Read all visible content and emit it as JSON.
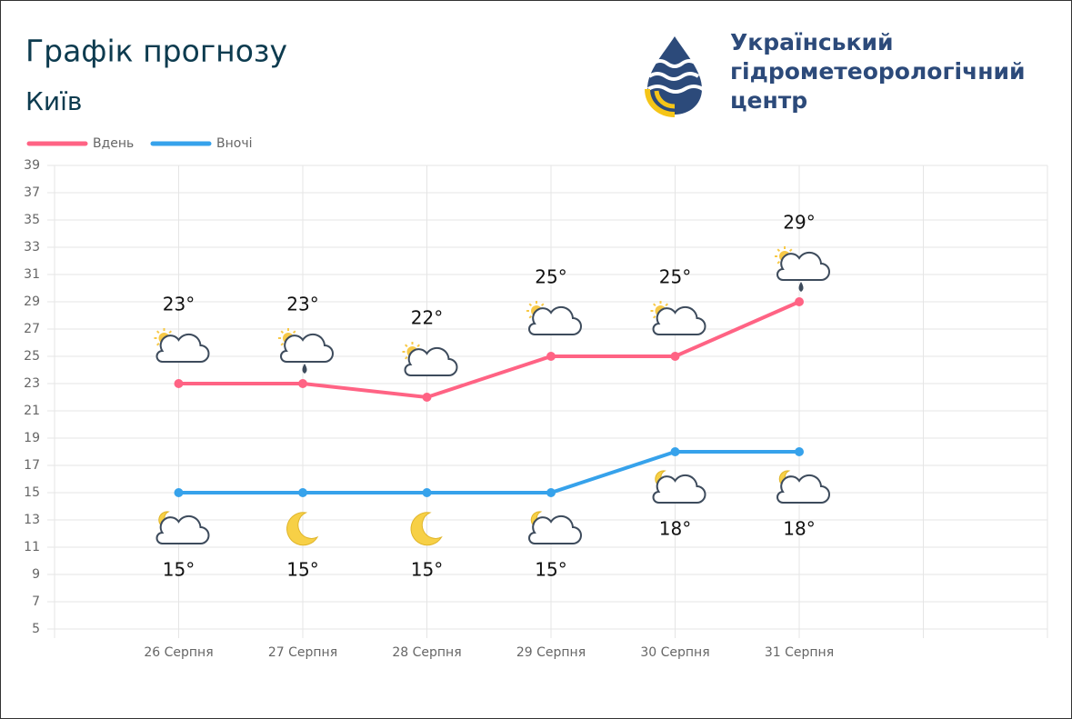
{
  "chart_data": {
    "type": "line",
    "title": "Графік прогнозу",
    "subtitle": "Київ",
    "logo": [
      "Український",
      "гідрометеорологічний",
      "центр"
    ],
    "categories": [
      null,
      "26 Серпня",
      "27 Серпня",
      "28 Серпня",
      "29 Серпня",
      "30 Серпня",
      "31 Серпня",
      null,
      null
    ],
    "series": [
      {
        "name": "Вдень",
        "color": "#ff6384",
        "values": [
          null,
          23,
          23,
          22,
          25,
          25,
          29,
          null,
          null
        ],
        "value_labels": [
          null,
          "23°",
          "23°",
          "22°",
          "25°",
          "25°",
          "29°",
          null,
          null
        ]
      },
      {
        "name": "Вночі",
        "color": "#36a2eb",
        "values": [
          null,
          15,
          15,
          15,
          15,
          18,
          18,
          null,
          null
        ],
        "value_labels": [
          null,
          "15°",
          "15°",
          "15°",
          "15°",
          "18°",
          "18°",
          null,
          null
        ]
      }
    ],
    "ylim": [
      5,
      39
    ],
    "yticks": [
      5,
      7,
      9,
      11,
      13,
      15,
      17,
      19,
      21,
      23,
      25,
      27,
      29,
      31,
      33,
      35,
      37,
      39
    ],
    "grid": true,
    "legend": "top-left"
  }
}
